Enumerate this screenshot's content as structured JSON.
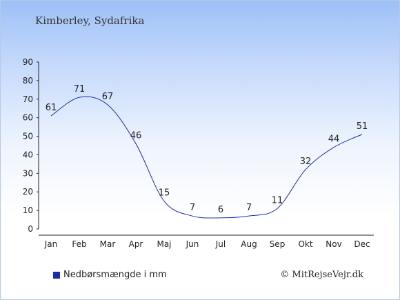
{
  "header": {
    "title": "Kimberley, Sydafrika"
  },
  "legend": {
    "label": "Nedbørsmængde i mm",
    "color": "#1a2fb0"
  },
  "footer": {
    "credit": "© MitRejseVejr.dk"
  },
  "chart_data": {
    "type": "line",
    "categories": [
      "Jan",
      "Feb",
      "Mar",
      "Apr",
      "Maj",
      "Jun",
      "Jul",
      "Aug",
      "Sep",
      "Okt",
      "Nov",
      "Dec"
    ],
    "series": [
      {
        "name": "Nedbørsmængde i mm",
        "values": [
          61,
          71,
          67,
          46,
          15,
          7,
          6,
          7,
          11,
          32,
          44,
          51
        ],
        "color": "#1a2fb0"
      }
    ],
    "ylim": [
      0,
      90
    ],
    "yticks": [
      0,
      10,
      20,
      30,
      40,
      50,
      60,
      70,
      80,
      90
    ],
    "grid": false,
    "legend_position": "bottom-left"
  }
}
